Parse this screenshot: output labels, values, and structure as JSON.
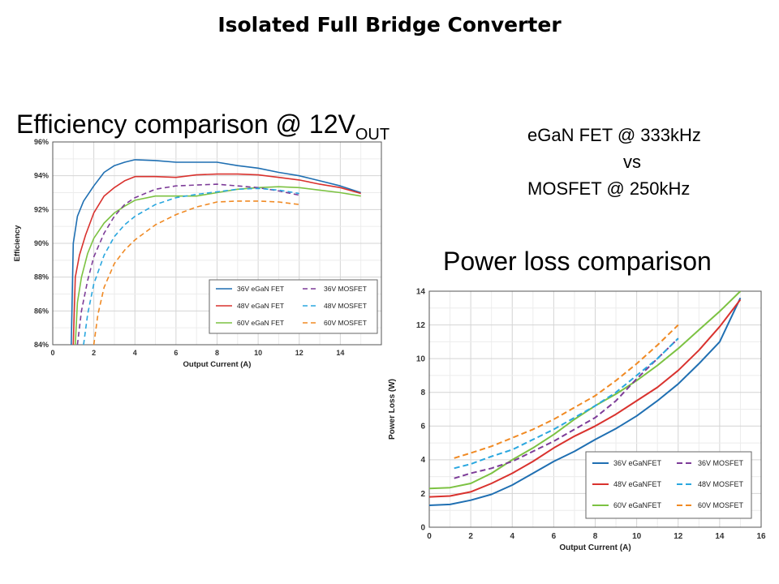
{
  "slide": {
    "title": "Isolated Full Bridge Converter",
    "efficiency_heading": "Efficiency comparison @ 12V",
    "efficiency_heading_sub": "OUT",
    "comparison_line1": "eGaN FET @ 333kHz",
    "comparison_line2": "vs",
    "comparison_line3": "MOSFET @ 250kHz",
    "power_loss_heading": "Power loss comparison"
  },
  "colors": {
    "blue": "#1f6fb2",
    "red": "#d9322e",
    "green": "#7cc242",
    "purple": "#7d3c98",
    "cyan": "#2aa7df",
    "orange": "#f08a24"
  },
  "chart_data": [
    {
      "type": "line",
      "xlabel": "Output Current (A)",
      "ylabel": "Efficiency",
      "xlim": [
        0,
        16
      ],
      "ylim": [
        84,
        96
      ],
      "xticks": [
        "0",
        "2",
        "4",
        "6",
        "8",
        "10",
        "12",
        "14"
      ],
      "xtick_values": [
        0,
        2,
        4,
        6,
        8,
        10,
        12,
        14
      ],
      "yticks": [
        "84%",
        "86%",
        "88%",
        "90%",
        "92%",
        "94%",
        "96%"
      ],
      "ytick_values": [
        84,
        86,
        88,
        90,
        92,
        94,
        96
      ],
      "grid": true,
      "legend_position": "bottom-right",
      "series": [
        {
          "name": "36V eGaN FET",
          "color": "blue",
          "dash": false,
          "x": [
            0.9,
            1.0,
            1.2,
            1.5,
            2.0,
            2.5,
            3.0,
            3.5,
            4.0,
            5.0,
            6.0,
            7.0,
            8.0,
            9.0,
            10.0,
            11.0,
            12.0,
            13.0,
            14.0,
            15.0
          ],
          "y": [
            84,
            90,
            91.6,
            92.5,
            93.4,
            94.2,
            94.6,
            94.8,
            94.95,
            94.9,
            94.8,
            94.8,
            94.8,
            94.6,
            94.45,
            94.2,
            94.0,
            93.7,
            93.4,
            93.0
          ]
        },
        {
          "name": "48V eGaN FET",
          "color": "red",
          "dash": false,
          "x": [
            1.0,
            1.1,
            1.3,
            1.6,
            2.0,
            2.5,
            3.0,
            3.5,
            4.0,
            5.0,
            6.0,
            7.0,
            8.0,
            9.0,
            10.0,
            11.0,
            12.0,
            13.0,
            14.0,
            15.0
          ],
          "y": [
            84,
            88,
            89.3,
            90.5,
            91.8,
            92.8,
            93.3,
            93.7,
            93.95,
            93.95,
            93.9,
            94.05,
            94.1,
            94.1,
            94.05,
            93.9,
            93.75,
            93.5,
            93.3,
            92.95
          ]
        },
        {
          "name": "60V eGaN FET",
          "color": "green",
          "dash": false,
          "x": [
            1.1,
            1.2,
            1.4,
            1.7,
            2.0,
            2.5,
            3.0,
            3.5,
            4.0,
            5.0,
            6.0,
            7.0,
            8.0,
            9.0,
            10.0,
            11.0,
            12.0,
            13.0,
            14.0,
            15.0
          ],
          "y": [
            84,
            86.5,
            88,
            89.4,
            90.3,
            91.2,
            91.8,
            92.2,
            92.55,
            92.8,
            92.8,
            92.8,
            93.0,
            93.2,
            93.3,
            93.35,
            93.3,
            93.15,
            93.0,
            92.8
          ]
        },
        {
          "name": "36V MOSFET",
          "color": "purple",
          "dash": true,
          "x": [
            1.2,
            1.4,
            1.7,
            2.0,
            2.5,
            3.0,
            3.5,
            4.0,
            5.0,
            6.0,
            7.0,
            8.0,
            9.0,
            10.0,
            11.0,
            12.0
          ],
          "y": [
            84,
            86,
            87.8,
            89.2,
            90.6,
            91.6,
            92.3,
            92.7,
            93.2,
            93.4,
            93.45,
            93.5,
            93.4,
            93.3,
            93.1,
            92.85
          ]
        },
        {
          "name": "48V MOSFET",
          "color": "cyan",
          "dash": true,
          "x": [
            1.5,
            1.7,
            2.0,
            2.5,
            3.0,
            3.5,
            4.0,
            5.0,
            6.0,
            7.0,
            8.0,
            9.0,
            10.0,
            11.0,
            12.0
          ],
          "y": [
            84,
            85.8,
            87.6,
            89.3,
            90.4,
            91.1,
            91.6,
            92.3,
            92.7,
            92.9,
            93.05,
            93.2,
            93.25,
            93.15,
            92.95
          ]
        },
        {
          "name": "60V MOSFET",
          "color": "orange",
          "dash": true,
          "x": [
            2.0,
            2.2,
            2.5,
            3.0,
            3.5,
            4.0,
            5.0,
            6.0,
            7.0,
            8.0,
            9.0,
            10.0,
            11.0,
            12.0
          ],
          "y": [
            84,
            85.8,
            87.4,
            88.8,
            89.6,
            90.2,
            91.1,
            91.7,
            92.15,
            92.45,
            92.5,
            92.5,
            92.45,
            92.3
          ]
        }
      ]
    },
    {
      "type": "line",
      "xlabel": "Output Current (A)",
      "ylabel": "Power Loss (W)",
      "xlim": [
        0,
        16
      ],
      "ylim": [
        0,
        14
      ],
      "xticks": [
        "0",
        "2",
        "4",
        "6",
        "8",
        "10",
        "12",
        "14",
        "16"
      ],
      "xtick_values": [
        0,
        2,
        4,
        6,
        8,
        10,
        12,
        14,
        16
      ],
      "yticks": [
        "0",
        "2",
        "4",
        "6",
        "8",
        "10",
        "12",
        "14"
      ],
      "ytick_values": [
        0,
        2,
        4,
        6,
        8,
        10,
        12,
        14
      ],
      "grid": true,
      "legend_position": "bottom-right",
      "series": [
        {
          "name": "36V eGaNFET",
          "color": "blue",
          "dash": false,
          "x": [
            0,
            1,
            2,
            3,
            4,
            5,
            6,
            7,
            8,
            9,
            10,
            11,
            12,
            13,
            14,
            15
          ],
          "y": [
            1.3,
            1.35,
            1.6,
            1.95,
            2.5,
            3.2,
            3.9,
            4.5,
            5.2,
            5.85,
            6.6,
            7.5,
            8.5,
            9.7,
            11.0,
            13.6
          ]
        },
        {
          "name": "48V eGaNFET",
          "color": "red",
          "dash": false,
          "x": [
            0,
            1,
            2,
            3,
            4,
            5,
            6,
            7,
            8,
            9,
            10,
            11,
            12,
            13,
            14,
            15
          ],
          "y": [
            1.8,
            1.85,
            2.1,
            2.6,
            3.2,
            3.9,
            4.7,
            5.4,
            6.0,
            6.7,
            7.5,
            8.3,
            9.3,
            10.5,
            11.9,
            13.5
          ]
        },
        {
          "name": "60V eGaNFET",
          "color": "green",
          "dash": false,
          "x": [
            0,
            1,
            2,
            3,
            4,
            5,
            6,
            7,
            8,
            9,
            10,
            11,
            12,
            13,
            14,
            15
          ],
          "y": [
            2.3,
            2.35,
            2.6,
            3.2,
            4.0,
            4.7,
            5.5,
            6.4,
            7.2,
            7.9,
            8.7,
            9.6,
            10.6,
            11.7,
            12.8,
            14.0
          ]
        },
        {
          "name": "36V MOSFET",
          "color": "purple",
          "dash": true,
          "x": [
            1.2,
            2,
            3,
            4,
            5,
            6,
            7,
            8,
            9,
            10,
            11,
            12
          ],
          "y": [
            2.9,
            3.2,
            3.5,
            3.9,
            4.5,
            5.1,
            5.8,
            6.5,
            7.5,
            8.8,
            10.0,
            11.2
          ]
        },
        {
          "name": "48V MOSFET",
          "color": "cyan",
          "dash": true,
          "x": [
            1.2,
            2,
            3,
            4,
            5,
            6,
            7,
            8,
            9,
            10,
            11,
            12
          ],
          "y": [
            3.5,
            3.75,
            4.2,
            4.6,
            5.2,
            5.8,
            6.5,
            7.2,
            8.0,
            9.0,
            10.0,
            11.2
          ]
        },
        {
          "name": "60V MOSFET",
          "color": "orange",
          "dash": true,
          "x": [
            1.2,
            2,
            3,
            4,
            5,
            6,
            7,
            8,
            9,
            10,
            11,
            12
          ],
          "y": [
            4.1,
            4.4,
            4.8,
            5.3,
            5.8,
            6.4,
            7.1,
            7.8,
            8.7,
            9.7,
            10.8,
            12.0
          ]
        }
      ]
    }
  ]
}
